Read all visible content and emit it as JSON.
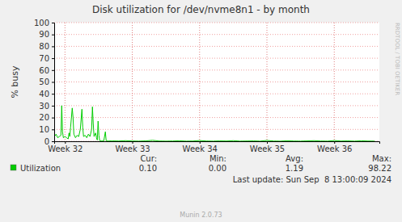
{
  "chart_data": {
    "type": "line",
    "title": "Disk utilization for /dev/nvme8n1 - by month",
    "y_label": "% busy",
    "x": [
      31.844,
      31.868,
      31.892,
      31.916,
      31.94,
      31.952,
      31.964,
      31.976,
      32,
      32.024,
      32.048,
      32.06,
      32.072,
      32.084,
      32.108,
      32.12,
      32.132,
      32.156,
      32.18,
      32.204,
      32.228,
      32.252,
      32.264,
      32.276,
      32.3,
      32.324,
      32.348,
      32.372,
      32.396,
      32.408,
      32.42,
      32.432,
      32.456,
      32.468,
      32.48,
      32.492,
      32.504,
      32.516,
      32.54,
      32.576,
      32.6,
      32.612,
      32.636,
      32.7,
      32.8,
      32.9,
      33,
      33.1,
      33.2,
      33.3,
      33.4,
      33.5,
      33.6,
      33.7,
      33.8,
      33.9,
      34,
      34.1,
      34.2,
      34.3,
      34.4,
      34.5,
      34.6,
      34.7,
      34.8,
      34.9,
      35,
      35.1,
      35.2,
      35.3,
      35.4,
      35.5,
      35.6,
      35.7,
      35.8,
      35.9,
      36,
      36.1,
      36.2,
      36.3,
      36.4,
      36.5,
      36.6
    ],
    "series": [
      {
        "name": "Utilization",
        "color": "#00cc00",
        "values": [
          4,
          6,
          3,
          4,
          5,
          30,
          8,
          3,
          4,
          3,
          2,
          7,
          4,
          12,
          28,
          20,
          6,
          3,
          5,
          4,
          10,
          27,
          12,
          4,
          5,
          3,
          6,
          4,
          10,
          29,
          15,
          4,
          7,
          3,
          1,
          17,
          5,
          0.5,
          0.3,
          0.2,
          8,
          0.5,
          0.2,
          0.3,
          0.2,
          0.5,
          0.2,
          0.1,
          0.3,
          0.8,
          0.2,
          0.1,
          0.2,
          0.4,
          0.1,
          0.2,
          0.6,
          0.2,
          0.1,
          0.3,
          0.2,
          0.5,
          0.1,
          0.2,
          0.3,
          0.1,
          0.7,
          0.2,
          0.1,
          0.4,
          0.2,
          0.1,
          0.3,
          0.5,
          0.2,
          0.1,
          0.6,
          0.2,
          0.3,
          0.1,
          0.4,
          0.2,
          0.1
        ]
      }
    ],
    "xlim": [
      31.84,
      36.67
    ],
    "xticks": [
      {
        "value": 32,
        "label": "Week 32"
      },
      {
        "value": 33,
        "label": "Week 33"
      },
      {
        "value": 34,
        "label": "Week 34"
      },
      {
        "value": 35,
        "label": "Week 35"
      },
      {
        "value": 36,
        "label": "Week 36"
      }
    ],
    "ylim": [
      0,
      100
    ],
    "yticks": [
      0,
      10,
      20,
      30,
      40,
      50,
      60,
      70,
      80,
      90,
      100
    ],
    "grid": true,
    "legend": "bottom",
    "stats": {
      "labels": [
        "Cur:",
        "Min:",
        "Avg:",
        "Max:"
      ],
      "values": [
        0.1,
        0.0,
        1.19,
        98.22
      ],
      "value_labels": [
        "0.10",
        "0.00",
        "1.19",
        "98.22"
      ]
    },
    "annotations": [
      "RRDTOOL / TOBI OETIKER",
      "Last update: Sun Sep  8 13:00:09 2024",
      "Munin 2.0.73"
    ]
  }
}
